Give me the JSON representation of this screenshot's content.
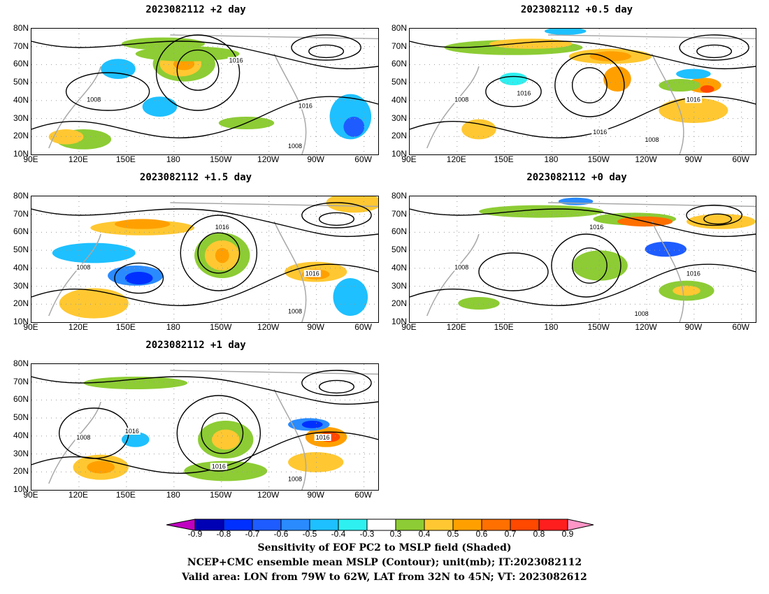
{
  "panels": [
    {
      "id": "p2",
      "title": "2023082112 +2 day"
    },
    {
      "id": "p05",
      "title": "2023082112 +0.5 day"
    },
    {
      "id": "p15",
      "title": "2023082112 +1.5 day"
    },
    {
      "id": "p0",
      "title": "2023082112 +0 day"
    },
    {
      "id": "p1",
      "title": "2023082112 +1 day"
    }
  ],
  "lat_labels": [
    "80N",
    "70N",
    "60N",
    "50N",
    "40N",
    "30N",
    "20N",
    "10N"
  ],
  "lon_labels": [
    "90E",
    "120E",
    "150E",
    "180",
    "150W",
    "120W",
    "90W",
    "60W"
  ],
  "contour_labels": {
    "low": "1008",
    "high": "1016"
  },
  "colorbar": {
    "levels": [
      "-0.9",
      "-0.8",
      "-0.7",
      "-0.6",
      "-0.5",
      "-0.4",
      "-0.3",
      "0.3",
      "0.4",
      "0.5",
      "0.6",
      "0.7",
      "0.8",
      "0.9"
    ],
    "colors": [
      "#c000c0",
      "#0000b4",
      "#0030ff",
      "#1e5cff",
      "#2a8bff",
      "#1ec0ff",
      "#2ef0f0",
      "#ffffff",
      "#8dcc34",
      "#ffc832",
      "#ffa000",
      "#ff7000",
      "#ff4800",
      "#ff1e1e",
      "#ff96c8"
    ]
  },
  "captions": [
    "Sensitivity of EOF PC2 to MSLP field (Shaded)",
    "NCEP+CMC ensemble mean MSLP (Contour); unit(mb); IT:2023082112",
    "Valid area: LON from 79W to 62W, LAT from 32N to 45N; VT: 2023082612"
  ]
}
